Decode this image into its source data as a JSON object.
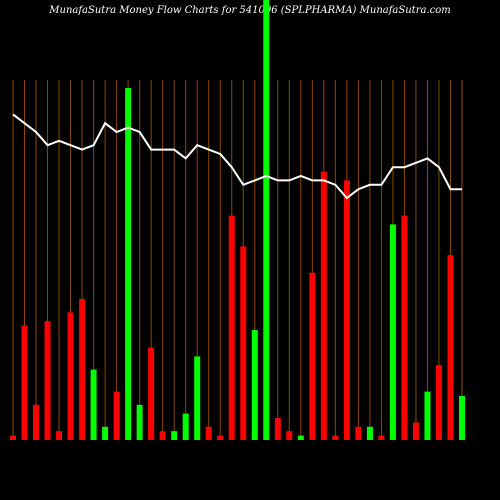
{
  "chart_data": {
    "type": "bar",
    "title": "MunafaSutra  Money Flow  Charts for 541096                  (SPLPHARMA) MunafaSutra.com",
    "ylim": [
      0,
      100
    ],
    "values": [
      1,
      26,
      8,
      27,
      2,
      29,
      32,
      16,
      3,
      11,
      80,
      8,
      21,
      2,
      2,
      6,
      19,
      3,
      1,
      51,
      44,
      25,
      100,
      5,
      2,
      1,
      38,
      61,
      1,
      59,
      3,
      3,
      1,
      49,
      51,
      4,
      11,
      17,
      42,
      10
    ],
    "colors": [
      "#ff0000",
      "#ff0000",
      "#ff0000",
      "#ff0000",
      "#ff0000",
      "#ff0000",
      "#ff0000",
      "#00ff00",
      "#00ff00",
      "#ff0000",
      "#00ff00",
      "#00ff00",
      "#ff0000",
      "#ff0000",
      "#00ff00",
      "#00ff00",
      "#00ff00",
      "#ff0000",
      "#ff0000",
      "#ff0000",
      "#ff0000",
      "#00ff00",
      "#00ff00",
      "#ff0000",
      "#ff0000",
      "#00ff00",
      "#ff0000",
      "#ff0000",
      "#ff0000",
      "#ff0000",
      "#ff0000",
      "#00ff00",
      "#ff0000",
      "#00ff00",
      "#ff0000",
      "#ff0000",
      "#00ff00",
      "#ff0000",
      "#ff0000",
      "#00ff00"
    ],
    "line_values": [
      74,
      72,
      70,
      67,
      68,
      67,
      66,
      67,
      72,
      70,
      71,
      70,
      66,
      66,
      66,
      64,
      67,
      66,
      65,
      62,
      58,
      59,
      60,
      59,
      59,
      60,
      59,
      59,
      58,
      55,
      57,
      58,
      58,
      62,
      62,
      63,
      64,
      62,
      57,
      57
    ],
    "line_color": "#ffffff"
  }
}
